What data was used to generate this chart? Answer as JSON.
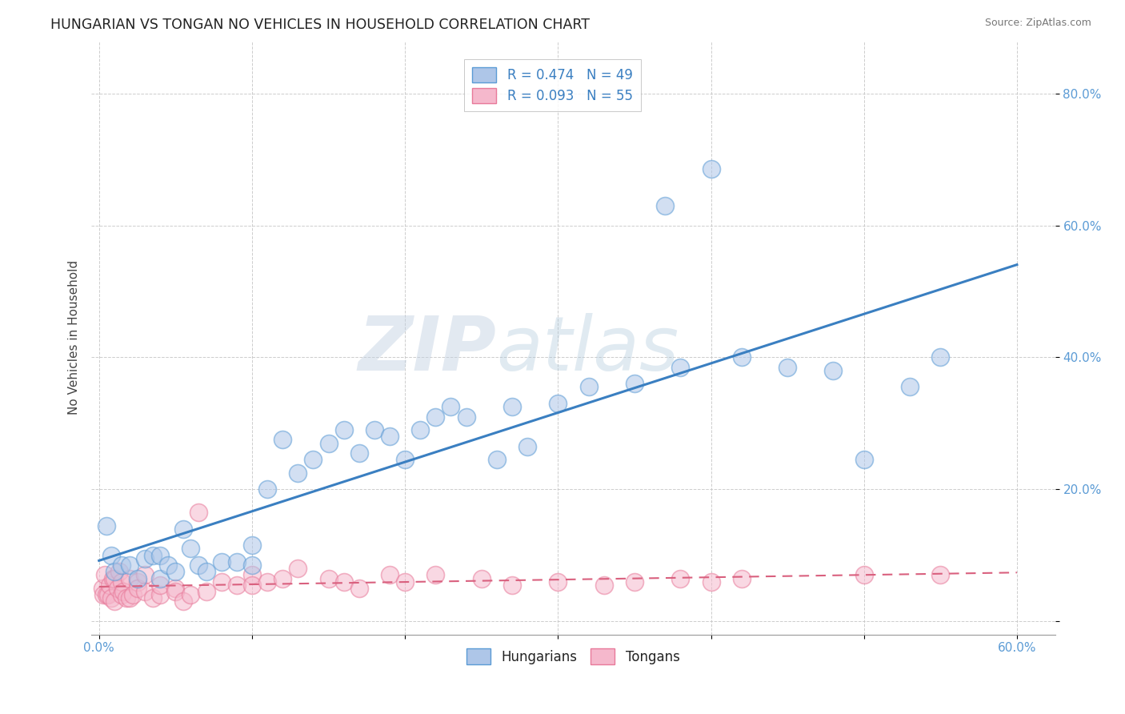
{
  "title": "HUNGARIAN VS TONGAN NO VEHICLES IN HOUSEHOLD CORRELATION CHART",
  "source": "Source: ZipAtlas.com",
  "ylabel": "No Vehicles in Household",
  "xlim": [
    -0.005,
    0.625
  ],
  "ylim": [
    -0.02,
    0.88
  ],
  "xtick_labels": [
    "0.0%",
    "",
    "",
    "",
    "",
    "",
    "60.0%"
  ],
  "xtick_vals": [
    0.0,
    0.1,
    0.2,
    0.3,
    0.4,
    0.5,
    0.6
  ],
  "ytick_labels": [
    "",
    "20.0%",
    "40.0%",
    "60.0%",
    "80.0%"
  ],
  "ytick_vals": [
    0.0,
    0.2,
    0.4,
    0.6,
    0.8
  ],
  "grid_color": "#c8c8c8",
  "background_color": "#ffffff",
  "hungarian_color": "#aec6e8",
  "tongan_color": "#f5b8cc",
  "hungarian_edge_color": "#5b9bd5",
  "tongan_edge_color": "#e87a9a",
  "hungarian_line_color": "#3a7fc1",
  "tongan_line_color": "#d9607e",
  "legend_R_hungarian": "R = 0.474",
  "legend_N_hungarian": "N = 49",
  "legend_R_tongan": "R = 0.093",
  "legend_N_tongan": "N = 55",
  "watermark_zip": "ZIP",
  "watermark_atlas": "atlas",
  "hungarian_x": [
    0.005,
    0.008,
    0.01,
    0.015,
    0.02,
    0.025,
    0.03,
    0.035,
    0.04,
    0.04,
    0.045,
    0.05,
    0.055,
    0.06,
    0.065,
    0.07,
    0.08,
    0.09,
    0.1,
    0.1,
    0.11,
    0.12,
    0.13,
    0.14,
    0.15,
    0.16,
    0.17,
    0.18,
    0.19,
    0.2,
    0.21,
    0.22,
    0.23,
    0.24,
    0.26,
    0.27,
    0.28,
    0.3,
    0.32,
    0.35,
    0.37,
    0.38,
    0.4,
    0.42,
    0.45,
    0.48,
    0.5,
    0.53,
    0.55
  ],
  "hungarian_y": [
    0.145,
    0.1,
    0.075,
    0.085,
    0.085,
    0.065,
    0.095,
    0.1,
    0.065,
    0.1,
    0.085,
    0.075,
    0.14,
    0.11,
    0.085,
    0.075,
    0.09,
    0.09,
    0.085,
    0.115,
    0.2,
    0.275,
    0.225,
    0.245,
    0.27,
    0.29,
    0.255,
    0.29,
    0.28,
    0.245,
    0.29,
    0.31,
    0.325,
    0.31,
    0.245,
    0.325,
    0.265,
    0.33,
    0.355,
    0.36,
    0.63,
    0.385,
    0.685,
    0.4,
    0.385,
    0.38,
    0.245,
    0.355,
    0.4
  ],
  "tongan_x": [
    0.002,
    0.003,
    0.004,
    0.005,
    0.006,
    0.007,
    0.008,
    0.009,
    0.01,
    0.01,
    0.012,
    0.013,
    0.015,
    0.015,
    0.016,
    0.018,
    0.02,
    0.02,
    0.022,
    0.025,
    0.025,
    0.03,
    0.03,
    0.035,
    0.04,
    0.04,
    0.05,
    0.05,
    0.055,
    0.06,
    0.065,
    0.07,
    0.08,
    0.09,
    0.1,
    0.1,
    0.11,
    0.12,
    0.13,
    0.15,
    0.16,
    0.17,
    0.19,
    0.2,
    0.22,
    0.25,
    0.27,
    0.3,
    0.33,
    0.35,
    0.38,
    0.4,
    0.42,
    0.5,
    0.55
  ],
  "tongan_y": [
    0.05,
    0.04,
    0.07,
    0.04,
    0.04,
    0.055,
    0.035,
    0.065,
    0.03,
    0.065,
    0.05,
    0.075,
    0.04,
    0.06,
    0.045,
    0.035,
    0.035,
    0.065,
    0.04,
    0.06,
    0.05,
    0.07,
    0.045,
    0.035,
    0.04,
    0.055,
    0.05,
    0.045,
    0.03,
    0.04,
    0.165,
    0.045,
    0.06,
    0.055,
    0.07,
    0.055,
    0.06,
    0.065,
    0.08,
    0.065,
    0.06,
    0.05,
    0.07,
    0.06,
    0.07,
    0.065,
    0.055,
    0.06,
    0.055,
    0.06,
    0.065,
    0.06,
    0.065,
    0.07,
    0.07
  ]
}
